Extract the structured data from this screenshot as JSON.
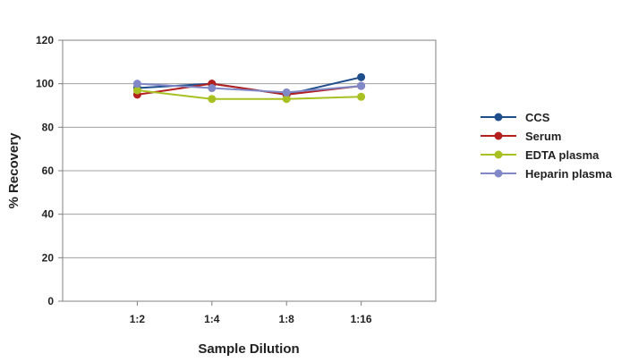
{
  "chart_data": {
    "type": "line",
    "xlabel": "Sample Dilution",
    "ylabel": "% Recovery",
    "categories": [
      "1:2",
      "1:4",
      "1:8",
      "1:16"
    ],
    "ylim": [
      0,
      120
    ],
    "yticks": [
      0,
      20,
      40,
      60,
      80,
      100,
      120
    ],
    "grid": "horizontal",
    "legend_position": "right",
    "series": [
      {
        "name": "CCS",
        "color": "#1f4e8c",
        "values": [
          98,
          100,
          95,
          103
        ]
      },
      {
        "name": "Serum",
        "color": "#b3201f",
        "values": [
          95,
          100,
          95,
          99
        ]
      },
      {
        "name": "EDTA plasma",
        "color": "#a8c021",
        "values": [
          97,
          93,
          93,
          94
        ]
      },
      {
        "name": "Heparin plasma",
        "color": "#8088c8",
        "values": [
          100,
          98,
          96,
          99
        ]
      }
    ]
  }
}
